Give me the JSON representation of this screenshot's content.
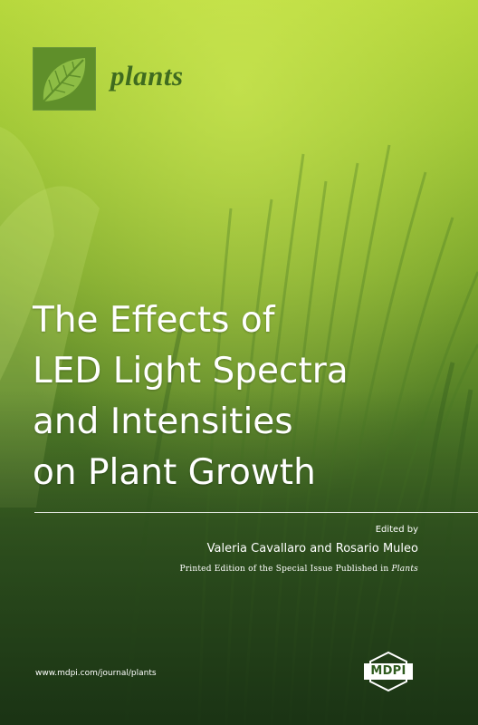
{
  "journal": {
    "name": "plants",
    "logo_icon": "leaf-icon"
  },
  "title_lines": [
    "The Effects of",
    "LED Light Spectra",
    "and Intensities",
    "on Plant Growth"
  ],
  "credits": {
    "edited_by": "Edited by",
    "editors": "Valeria Cavallaro and Rosario Muleo",
    "printed_prefix": "Printed Edition of the Special Issue Published in ",
    "printed_journal": "Plants"
  },
  "website": "www.mdpi.com/journal/plants",
  "publisher": {
    "name": "MDPI",
    "logo_icon": "mdpi-hexagon-icon"
  },
  "colors": {
    "background_top": "#b4d63a",
    "background_bottom": "#1d3a17",
    "logo_box": "#5f8f2a",
    "journal_name": "#3f6b1f",
    "text": "#ffffff"
  }
}
